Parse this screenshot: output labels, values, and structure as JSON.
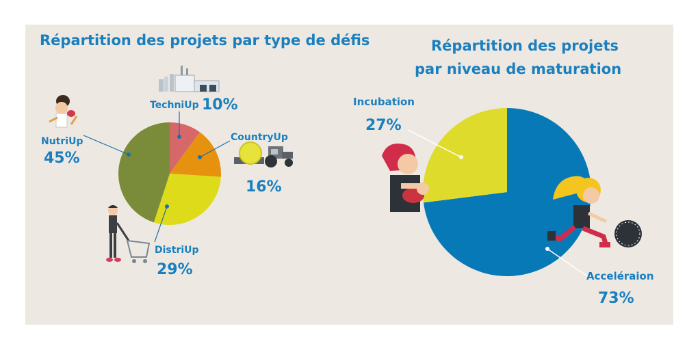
{
  "colors": {
    "panel": "#ede9e2",
    "accent_text": "#1a7fbf",
    "nutri": "#7a8c3a",
    "techni": "#d7686a",
    "country": "#e6920f",
    "distri": "#dedb1a",
    "incubation": "#dedb2c",
    "acceleration": "#0879b7",
    "leader_line": "#1f6fa8"
  },
  "chart_data": [
    {
      "type": "pie",
      "title": "Répartition des projets par type de défis",
      "slices": [
        {
          "label": "TechniUp",
          "value": 10,
          "value_label": "10%",
          "color": "#d7686a",
          "icon": "factory-icon"
        },
        {
          "label": "CountryUp",
          "value": 16,
          "value_label": "16%",
          "color": "#e6920f",
          "icon": "tractor-icon"
        },
        {
          "label": "DistriUp",
          "value": 29,
          "value_label": "29%",
          "color": "#dedb1a",
          "icon": "shopping-cart-person-icon"
        },
        {
          "label": "NutriUp",
          "value": 45,
          "value_label": "45%",
          "color": "#7a8c3a",
          "icon": "chef-person-icon"
        }
      ]
    },
    {
      "type": "pie",
      "title_lines": [
        "Répartition des projets",
        "par niveau de maturation"
      ],
      "slices": [
        {
          "label": "Acceléraion",
          "value": 73,
          "value_label": "73%",
          "color": "#0879b7",
          "icon": "girl-kicking-ball-icon"
        },
        {
          "label": "Incubation",
          "value": 27,
          "value_label": "27%",
          "color": "#dedb2c",
          "icon": "person-holding-baby-icon"
        }
      ]
    }
  ]
}
